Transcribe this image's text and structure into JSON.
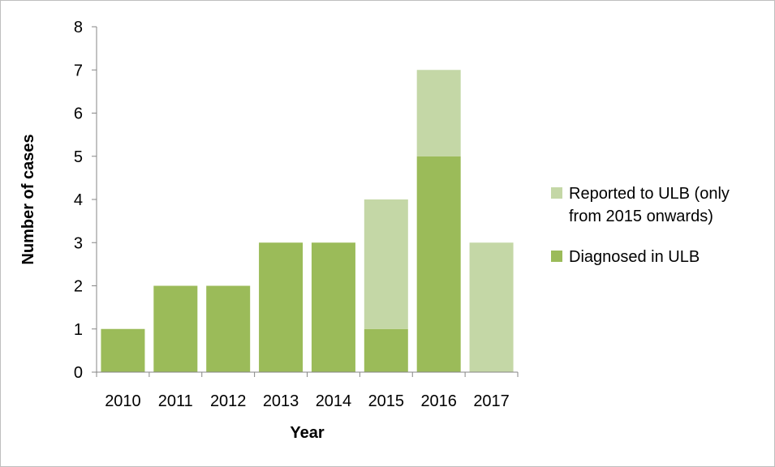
{
  "chart_data": {
    "type": "bar",
    "stacked": true,
    "categories": [
      "2010",
      "2011",
      "2012",
      "2013",
      "2014",
      "2015",
      "2016",
      "2017"
    ],
    "series": [
      {
        "name": "Diagnosed in ULB",
        "values": [
          1,
          2,
          2,
          3,
          3,
          1,
          5,
          0
        ],
        "color": "#9bbb59"
      },
      {
        "name": "Reported to ULB (only from 2015 onwards)",
        "values": [
          0,
          0,
          0,
          0,
          0,
          3,
          2,
          3
        ],
        "color": "#c4d7a6"
      }
    ],
    "xlabel": "Year",
    "ylabel": "Number of cases",
    "ylim": [
      0,
      8
    ],
    "yticks": [
      0,
      1,
      2,
      3,
      4,
      5,
      6,
      7,
      8
    ],
    "grid": false,
    "legend_position": "right",
    "legend": [
      {
        "label_lines": [
          "Reported to ULB (only",
          "from 2015 onwards)"
        ],
        "color": "#c4d7a6"
      },
      {
        "label_lines": [
          "Diagnosed in ULB"
        ],
        "color": "#9bbb59"
      }
    ],
    "axis_color": "#868686"
  }
}
